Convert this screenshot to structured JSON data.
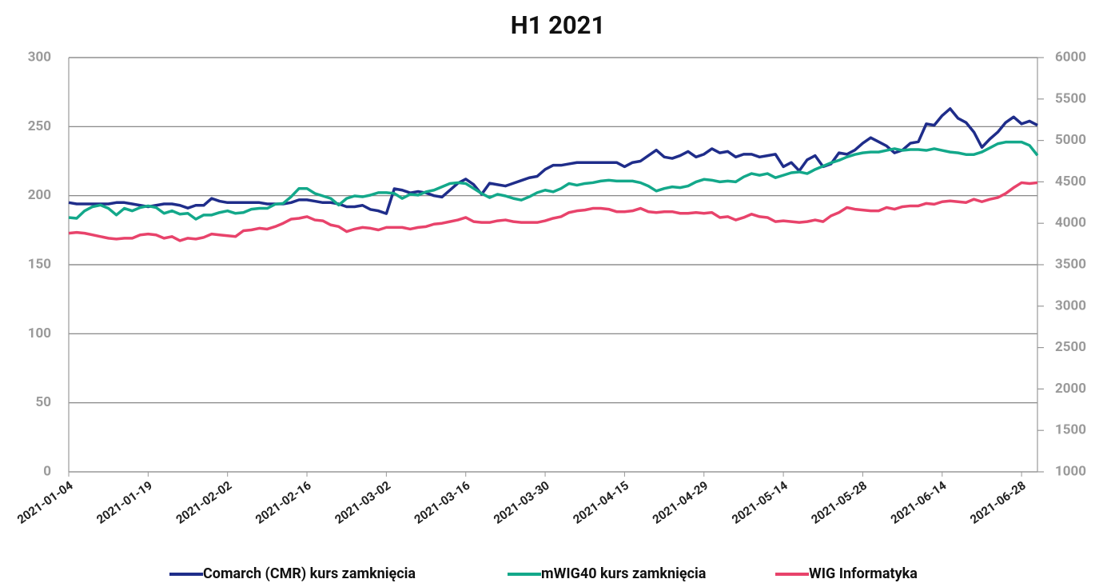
{
  "chart_data": {
    "type": "line",
    "title": "H1 2021",
    "categories": [
      "2021-01-04",
      null,
      null,
      null,
      null,
      null,
      null,
      null,
      null,
      null,
      "2021-01-19",
      null,
      null,
      null,
      null,
      null,
      null,
      null,
      null,
      null,
      "2021-02-02",
      null,
      null,
      null,
      null,
      null,
      null,
      null,
      null,
      null,
      "2021-02-16",
      null,
      null,
      null,
      null,
      null,
      null,
      null,
      null,
      null,
      "2021-03-02",
      null,
      null,
      null,
      null,
      null,
      null,
      null,
      null,
      null,
      "2021-03-16",
      null,
      null,
      null,
      null,
      null,
      null,
      null,
      null,
      null,
      "2021-03-30",
      null,
      null,
      null,
      null,
      null,
      null,
      null,
      null,
      null,
      "2021-04-15",
      null,
      null,
      null,
      null,
      null,
      null,
      null,
      null,
      null,
      "2021-04-29",
      null,
      null,
      null,
      null,
      null,
      null,
      null,
      null,
      null,
      "2021-05-14",
      null,
      null,
      null,
      null,
      null,
      null,
      null,
      null,
      null,
      "2021-05-28",
      null,
      null,
      null,
      null,
      null,
      null,
      null,
      null,
      null,
      "2021-06-14",
      null,
      null,
      null,
      null,
      null,
      null,
      null,
      null,
      null,
      "2021-06-28",
      null,
      null
    ],
    "series": [
      {
        "name": "Comarch (CMR) kurs zamknięcia",
        "color": "#1f2d8a",
        "values": [
          195,
          194,
          194,
          194,
          194,
          194,
          195,
          195,
          194,
          193,
          192,
          193,
          194,
          194,
          193,
          191,
          193,
          193,
          198,
          196,
          195,
          195,
          195,
          195,
          195,
          194,
          194,
          194,
          195,
          197,
          197,
          196,
          195,
          195,
          194,
          192,
          192,
          193,
          190,
          189,
          187,
          205,
          204,
          202,
          203,
          202,
          200,
          199,
          204,
          209,
          212,
          208,
          201,
          209,
          208,
          207,
          209,
          211,
          213,
          214,
          219,
          222,
          222,
          223,
          224,
          224,
          224,
          224,
          224,
          224,
          221,
          224,
          225,
          229,
          233,
          228,
          227,
          229,
          232,
          228,
          230,
          234,
          231,
          232,
          228,
          230,
          230,
          228,
          229,
          230,
          221,
          224,
          218,
          226,
          229,
          221,
          223,
          231,
          230,
          233,
          238,
          242,
          239,
          236,
          231,
          233,
          238,
          239,
          252,
          251,
          258,
          263,
          256,
          253,
          246,
          235,
          241,
          246,
          253,
          257,
          252,
          254,
          251
        ]
      },
      {
        "name": "mWIG40 kurs zamknięcia",
        "color": "#13a88a",
        "axis": "y2",
        "values": [
          4070,
          4060,
          4150,
          4200,
          4220,
          4180,
          4100,
          4180,
          4150,
          4190,
          4210,
          4190,
          4120,
          4150,
          4110,
          4120,
          4050,
          4100,
          4100,
          4130,
          4150,
          4120,
          4130,
          4170,
          4180,
          4180,
          4230,
          4240,
          4320,
          4420,
          4420,
          4360,
          4330,
          4300,
          4220,
          4300,
          4330,
          4320,
          4340,
          4370,
          4370,
          4360,
          4300,
          4350,
          4340,
          4380,
          4400,
          4440,
          4480,
          4490,
          4480,
          4420,
          4360,
          4310,
          4350,
          4330,
          4300,
          4280,
          4320,
          4370,
          4400,
          4380,
          4420,
          4480,
          4460,
          4480,
          4490,
          4510,
          4520,
          4510,
          4510,
          4510,
          4490,
          4450,
          4390,
          4420,
          4440,
          4430,
          4450,
          4500,
          4530,
          4520,
          4500,
          4510,
          4500,
          4560,
          4600,
          4580,
          4600,
          4550,
          4580,
          4610,
          4620,
          4600,
          4650,
          4690,
          4730,
          4760,
          4800,
          4830,
          4850,
          4860,
          4860,
          4880,
          4900,
          4880,
          4890,
          4890,
          4880,
          4900,
          4880,
          4860,
          4850,
          4830,
          4830,
          4860,
          4910,
          4960,
          4980,
          4980,
          4980,
          4940,
          4820
        ]
      },
      {
        "name": "WIG Informatyka",
        "color": "#e8436b",
        "axis": "y2",
        "values": [
          3880,
          3890,
          3880,
          3860,
          3840,
          3820,
          3810,
          3820,
          3820,
          3860,
          3870,
          3860,
          3820,
          3840,
          3790,
          3820,
          3810,
          3830,
          3870,
          3860,
          3850,
          3840,
          3910,
          3920,
          3940,
          3930,
          3960,
          4000,
          4050,
          4060,
          4080,
          4040,
          4030,
          3980,
          3960,
          3900,
          3930,
          3950,
          3940,
          3920,
          3950,
          3950,
          3950,
          3930,
          3950,
          3960,
          3990,
          4000,
          4020,
          4040,
          4070,
          4020,
          4010,
          4010,
          4030,
          4040,
          4020,
          4010,
          4010,
          4010,
          4030,
          4060,
          4080,
          4130,
          4150,
          4160,
          4180,
          4180,
          4170,
          4140,
          4140,
          4150,
          4180,
          4140,
          4130,
          4140,
          4140,
          4120,
          4120,
          4130,
          4120,
          4130,
          4070,
          4080,
          4040,
          4070,
          4110,
          4080,
          4070,
          4020,
          4030,
          4020,
          4010,
          4020,
          4040,
          4020,
          4090,
          4130,
          4190,
          4170,
          4160,
          4150,
          4150,
          4190,
          4170,
          4200,
          4210,
          4210,
          4240,
          4230,
          4260,
          4270,
          4260,
          4250,
          4290,
          4260,
          4290,
          4310,
          4360,
          4430,
          4490,
          4480,
          4490
        ]
      }
    ],
    "ylim": [
      0,
      300
    ],
    "yticks": [
      0,
      50,
      100,
      150,
      200,
      250,
      300
    ],
    "y2lim": [
      1000,
      6000
    ],
    "y2ticks": [
      1000,
      1500,
      2000,
      2500,
      3000,
      3500,
      4000,
      4500,
      5000,
      5500,
      6000
    ],
    "grid": true,
    "legend": "bottom"
  }
}
